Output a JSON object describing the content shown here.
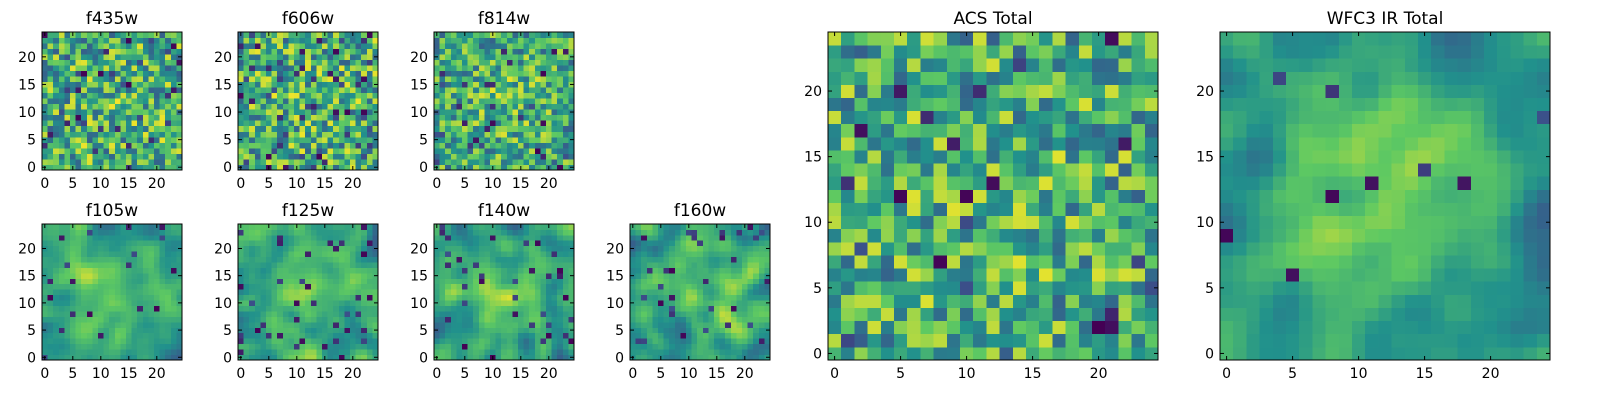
{
  "figure": {
    "colormap": [
      "#440154",
      "#3b528b",
      "#21918c",
      "#5ec962",
      "#fde725"
    ],
    "frame_color": "#000000",
    "background": "#ffffff"
  },
  "chart_data": [
    {
      "type": "heatmap",
      "title": "f435w",
      "xlim": [
        -0.5,
        24.5
      ],
      "ylim": [
        -0.5,
        24.5
      ],
      "xticks": [
        0,
        5,
        10,
        15,
        20
      ],
      "yticks": [
        0,
        5,
        10,
        15,
        20
      ],
      "grid": false,
      "pixel_grid": [
        25,
        25
      ],
      "seed": 11,
      "smooth": 0,
      "dark_fraction": 0.06,
      "blob": 0.05
    },
    {
      "type": "heatmap",
      "title": "f606w",
      "xlim": [
        -0.5,
        24.5
      ],
      "ylim": [
        -0.5,
        24.5
      ],
      "xticks": [
        0,
        5,
        10,
        15,
        20
      ],
      "yticks": [
        0,
        5,
        10,
        15,
        20
      ],
      "grid": false,
      "pixel_grid": [
        25,
        25
      ],
      "seed": 23,
      "smooth": 0,
      "dark_fraction": 0.07,
      "blob": 0.05
    },
    {
      "type": "heatmap",
      "title": "f814w",
      "xlim": [
        -0.5,
        24.5
      ],
      "ylim": [
        -0.5,
        24.5
      ],
      "xticks": [
        0,
        5,
        10,
        15,
        20
      ],
      "yticks": [
        0,
        5,
        10,
        15,
        20
      ],
      "grid": false,
      "pixel_grid": [
        25,
        25
      ],
      "seed": 37,
      "smooth": 0,
      "dark_fraction": 0.04,
      "blob": 0.15
    },
    {
      "type": "heatmap",
      "title": "f105w",
      "xlim": [
        -0.5,
        24.5
      ],
      "ylim": [
        -0.5,
        24.5
      ],
      "xticks": [
        0,
        5,
        10,
        15,
        20
      ],
      "yticks": [
        0,
        5,
        10,
        15,
        20
      ],
      "grid": false,
      "pixel_grid": [
        25,
        25
      ],
      "seed": 41,
      "smooth": 2,
      "dark_fraction": 0.04,
      "blob": 0.3
    },
    {
      "type": "heatmap",
      "title": "f125w",
      "xlim": [
        -0.5,
        24.5
      ],
      "ylim": [
        -0.5,
        24.5
      ],
      "xticks": [
        0,
        5,
        10,
        15,
        20
      ],
      "yticks": [
        0,
        5,
        10,
        15,
        20
      ],
      "grid": false,
      "pixel_grid": [
        25,
        25
      ],
      "seed": 53,
      "smooth": 2,
      "dark_fraction": 0.05,
      "blob": 0.2
    },
    {
      "type": "heatmap",
      "title": "f140w",
      "xlim": [
        -0.5,
        24.5
      ],
      "ylim": [
        -0.5,
        24.5
      ],
      "xticks": [
        0,
        5,
        10,
        15,
        20
      ],
      "yticks": [
        0,
        5,
        10,
        15,
        20
      ],
      "grid": false,
      "pixel_grid": [
        25,
        25
      ],
      "seed": 67,
      "smooth": 2,
      "dark_fraction": 0.05,
      "blob": 0.25
    },
    {
      "type": "heatmap",
      "title": "f160w",
      "xlim": [
        -0.5,
        24.5
      ],
      "ylim": [
        -0.5,
        24.5
      ],
      "xticks": [
        0,
        5,
        10,
        15,
        20
      ],
      "yticks": [
        0,
        5,
        10,
        15,
        20
      ],
      "grid": false,
      "pixel_grid": [
        25,
        25
      ],
      "seed": 79,
      "smooth": 2,
      "dark_fraction": 0.05,
      "blob": 0.25
    },
    {
      "type": "heatmap",
      "title": "ACS Total",
      "xlim": [
        -0.5,
        24.5
      ],
      "ylim": [
        -0.5,
        24.5
      ],
      "xticks": [
        0,
        5,
        10,
        15,
        20
      ],
      "yticks": [
        0,
        5,
        10,
        15,
        20
      ],
      "grid": false,
      "pixel_grid": [
        25,
        25
      ],
      "seed": 97,
      "smooth": 0,
      "dark_fraction": 0.04,
      "blob": 0.1
    },
    {
      "type": "heatmap",
      "title": "WFC3 IR Total",
      "xlim": [
        -0.5,
        24.5
      ],
      "ylim": [
        -0.5,
        24.5
      ],
      "xticks": [
        0,
        5,
        10,
        15,
        20
      ],
      "yticks": [
        0,
        5,
        10,
        15,
        20
      ],
      "grid": false,
      "pixel_grid": [
        25,
        25
      ],
      "seed": 113,
      "smooth": 2,
      "dark_fraction": 0.02,
      "blob": 0.45
    }
  ]
}
